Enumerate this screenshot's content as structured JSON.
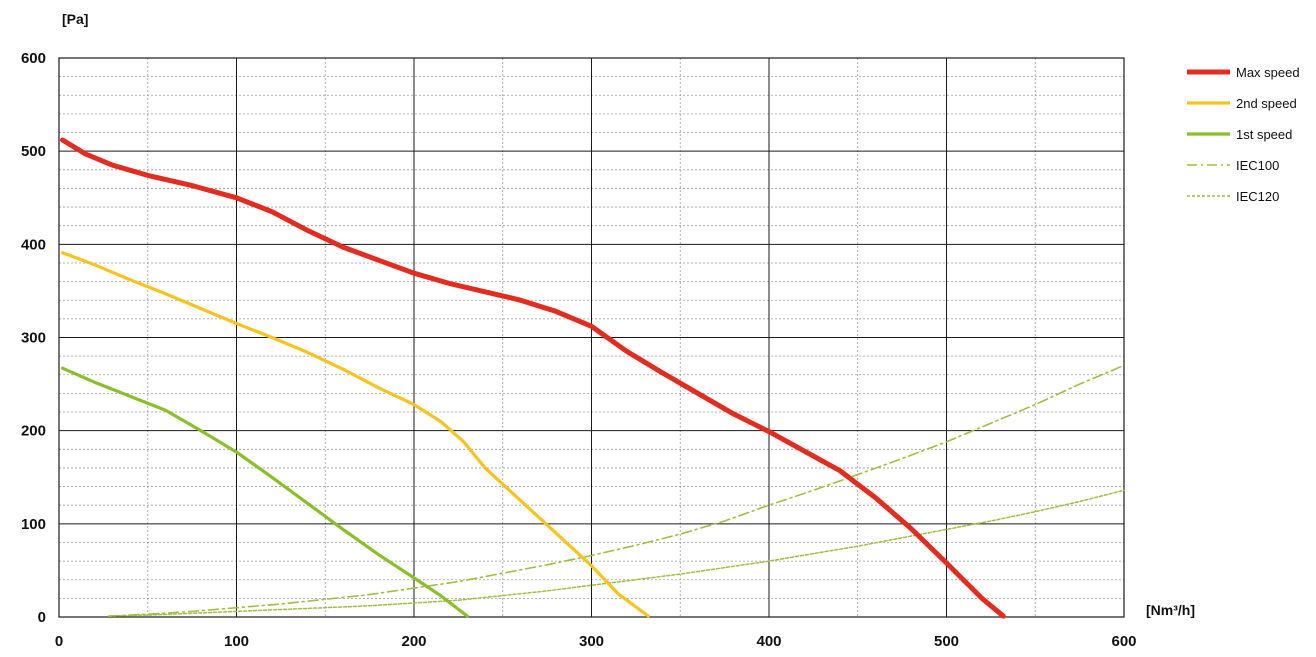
{
  "chart_data": {
    "type": "line",
    "xlabel": "[Nm³/h]",
    "ylabel": "[Pa]",
    "xlim": [
      0,
      600
    ],
    "ylim": [
      0,
      600
    ],
    "x_major_ticks": [
      0,
      100,
      200,
      300,
      400,
      500,
      600
    ],
    "y_major_ticks": [
      0,
      100,
      200,
      300,
      400,
      500,
      600
    ],
    "x_tick_labels": [
      "0",
      "100",
      "200",
      "300",
      "400",
      "500",
      "600"
    ],
    "y_tick_labels": [
      "0",
      "100",
      "200",
      "300",
      "400",
      "500",
      "600"
    ],
    "grid": true,
    "legend_position": "right",
    "series": [
      {
        "name": "Max speed",
        "color": "#e32b1e",
        "style": "solid-thick",
        "points": [
          [
            2,
            512
          ],
          [
            15,
            497
          ],
          [
            30,
            485
          ],
          [
            50,
            474
          ],
          [
            75,
            463
          ],
          [
            100,
            450
          ],
          [
            120,
            435
          ],
          [
            140,
            415
          ],
          [
            160,
            397
          ],
          [
            180,
            383
          ],
          [
            200,
            369
          ],
          [
            220,
            358
          ],
          [
            240,
            349
          ],
          [
            260,
            340
          ],
          [
            280,
            328
          ],
          [
            300,
            312
          ],
          [
            320,
            285
          ],
          [
            340,
            262
          ],
          [
            360,
            240
          ],
          [
            380,
            218
          ],
          [
            400,
            199
          ],
          [
            420,
            178
          ],
          [
            440,
            157
          ],
          [
            460,
            128
          ],
          [
            480,
            95
          ],
          [
            500,
            58
          ],
          [
            520,
            20
          ],
          [
            532,
            1
          ]
        ]
      },
      {
        "name": "2nd speed",
        "color": "#f8c31d",
        "style": "solid",
        "points": [
          [
            2,
            391
          ],
          [
            20,
            378
          ],
          [
            40,
            362
          ],
          [
            60,
            347
          ],
          [
            80,
            331
          ],
          [
            100,
            315
          ],
          [
            120,
            300
          ],
          [
            140,
            284
          ],
          [
            160,
            266
          ],
          [
            180,
            246
          ],
          [
            200,
            228
          ],
          [
            215,
            210
          ],
          [
            228,
            188
          ],
          [
            240,
            160
          ],
          [
            260,
            125
          ],
          [
            280,
            90
          ],
          [
            300,
            55
          ],
          [
            315,
            25
          ],
          [
            332,
            1
          ]
        ]
      },
      {
        "name": "1st speed",
        "color": "#8bbf2a",
        "style": "solid",
        "points": [
          [
            2,
            267
          ],
          [
            20,
            252
          ],
          [
            40,
            237
          ],
          [
            60,
            222
          ],
          [
            80,
            200
          ],
          [
            100,
            177
          ],
          [
            120,
            150
          ],
          [
            140,
            122
          ],
          [
            160,
            94
          ],
          [
            180,
            67
          ],
          [
            200,
            42
          ],
          [
            215,
            23
          ],
          [
            230,
            1
          ]
        ]
      },
      {
        "name": "IEC100",
        "color": "#9cc13f",
        "style": "dash-dot",
        "points": [
          [
            28,
            1
          ],
          [
            50,
            3
          ],
          [
            75,
            6
          ],
          [
            100,
            10
          ],
          [
            125,
            14
          ],
          [
            150,
            19
          ],
          [
            175,
            24
          ],
          [
            200,
            31
          ],
          [
            225,
            38
          ],
          [
            250,
            47
          ],
          [
            275,
            56
          ],
          [
            300,
            66
          ],
          [
            325,
            77
          ],
          [
            350,
            89
          ],
          [
            375,
            103
          ],
          [
            400,
            120
          ],
          [
            425,
            136
          ],
          [
            450,
            153
          ],
          [
            475,
            170
          ],
          [
            500,
            188
          ],
          [
            525,
            208
          ],
          [
            550,
            228
          ],
          [
            575,
            250
          ],
          [
            600,
            270
          ]
        ]
      },
      {
        "name": "IEC120",
        "color": "#9cc13f",
        "style": "dotted",
        "points": [
          [
            28,
            1
          ],
          [
            50,
            2
          ],
          [
            75,
            4
          ],
          [
            100,
            6
          ],
          [
            125,
            8
          ],
          [
            150,
            10
          ],
          [
            175,
            12
          ],
          [
            200,
            15
          ],
          [
            225,
            18
          ],
          [
            250,
            23
          ],
          [
            275,
            28
          ],
          [
            300,
            34
          ],
          [
            325,
            40
          ],
          [
            350,
            46
          ],
          [
            375,
            53
          ],
          [
            400,
            60
          ],
          [
            425,
            68
          ],
          [
            450,
            76
          ],
          [
            475,
            85
          ],
          [
            500,
            94
          ],
          [
            525,
            103
          ],
          [
            550,
            113
          ],
          [
            575,
            124
          ],
          [
            600,
            136
          ]
        ]
      }
    ]
  }
}
